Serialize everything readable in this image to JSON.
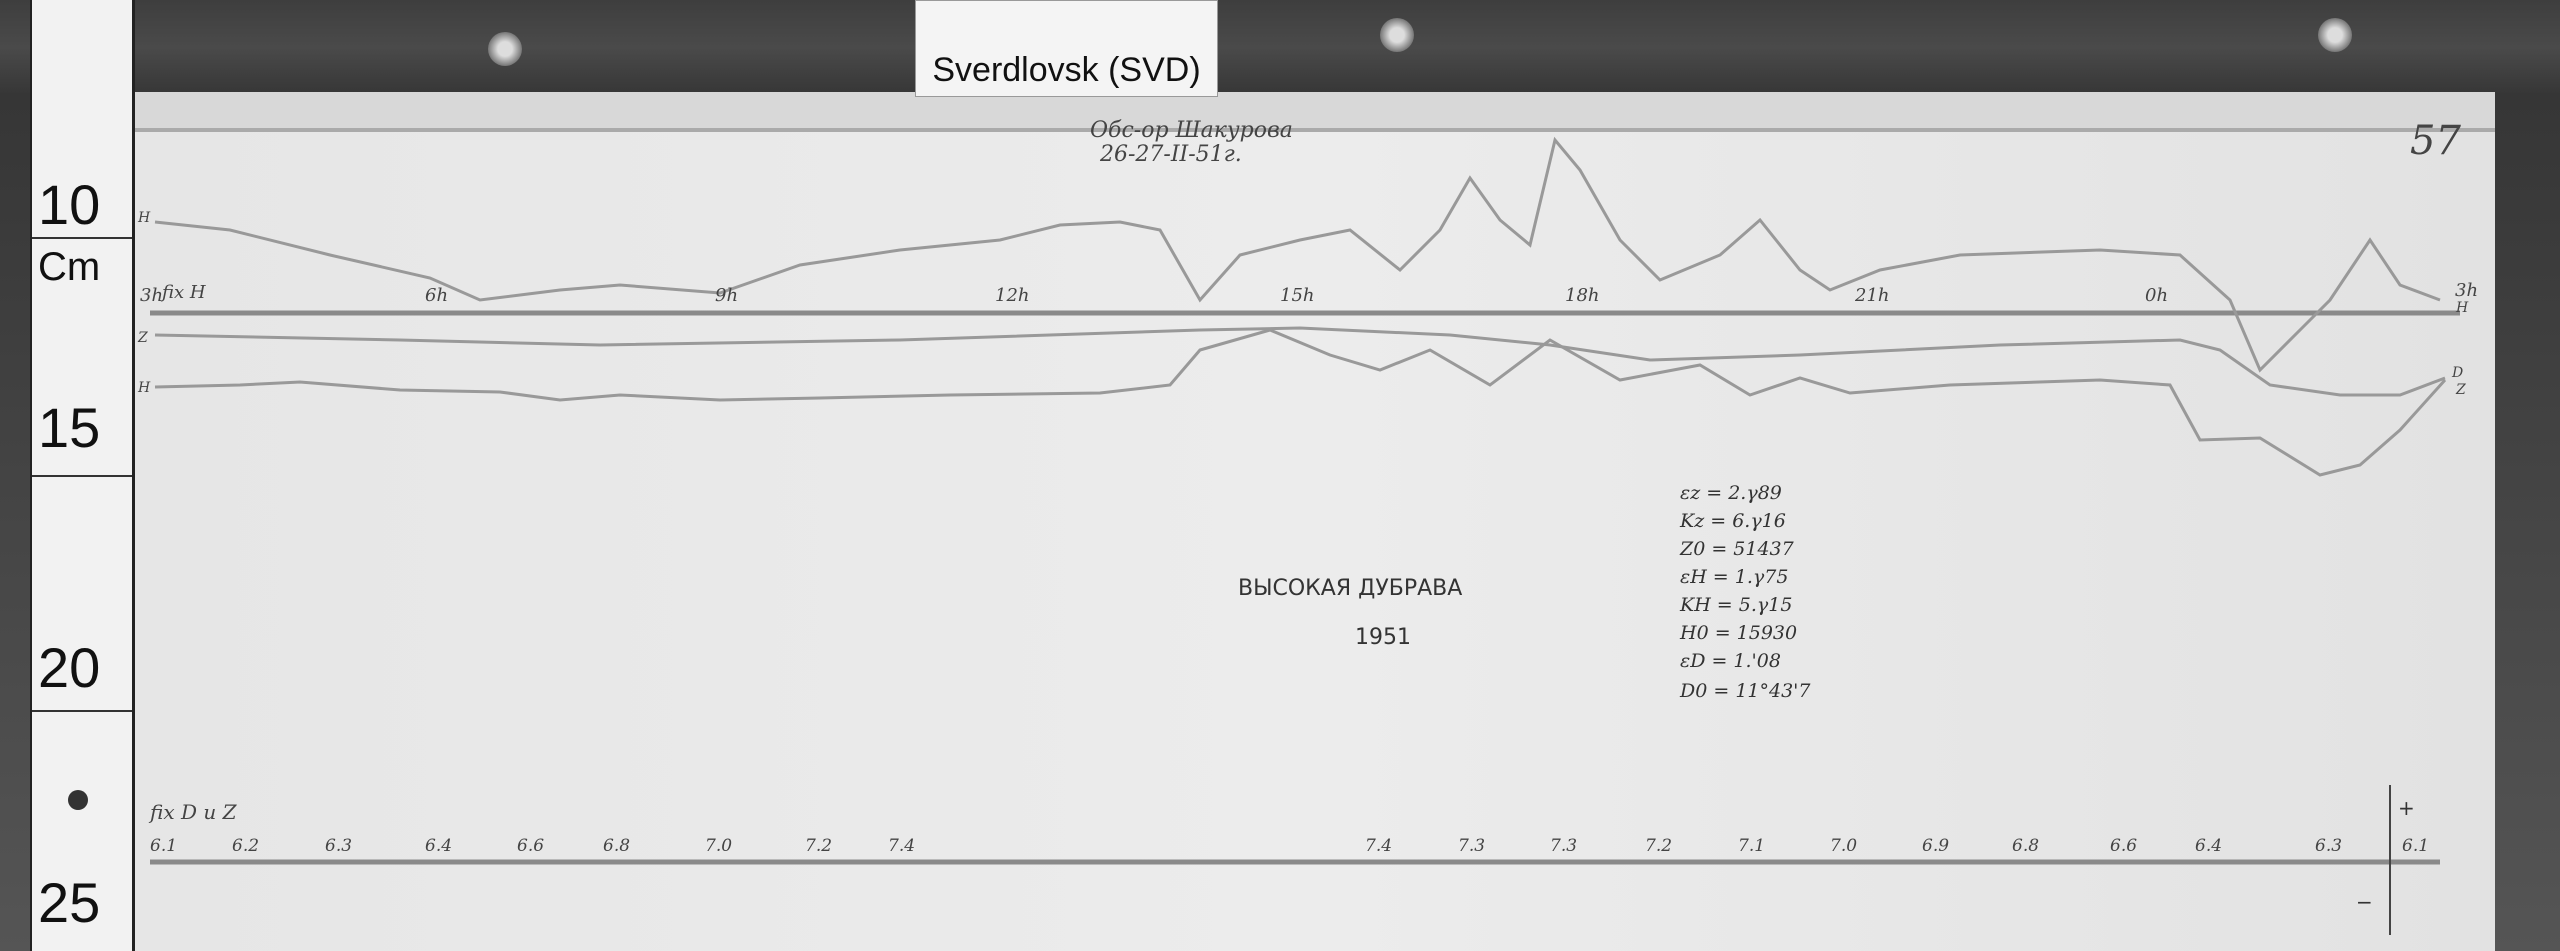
{
  "label": {
    "text": "Sverdlovsk (SVD)"
  },
  "ruler": {
    "unit": "Cm",
    "marks": [
      "10",
      "15",
      "20",
      "25"
    ]
  },
  "header": {
    "observer": "Обс-ор Шакурова",
    "date": "26-27-II-51г.",
    "sheet_number": "57"
  },
  "trace_labels": {
    "fix": "fix H",
    "h_top": "H",
    "z": "Z",
    "h_low": "H",
    "right_h": "H",
    "right_d": "D",
    "right_z": "Z"
  },
  "hours": [
    "3h",
    "6h",
    "9h",
    "12h",
    "15h",
    "18h",
    "21h",
    "0h",
    "3h"
  ],
  "station": {
    "name": "ВЫСОКАЯ ДУБРАВА",
    "year": "1951"
  },
  "parameters": [
    "εz = 2.γ89",
    "Kz = 6.γ16",
    "Z0 = 51437",
    "εH = 1.γ75",
    "KH = 5.γ15",
    "H0 = 15930",
    "εD = 1.'08",
    "D0 = 11°43'7"
  ],
  "temperature": {
    "label": "fix D u Z",
    "left_values": [
      "6.1",
      "6.2",
      "6.3",
      "6.4",
      "6.6",
      "6.8",
      "7.0",
      "7.2",
      "7.4"
    ],
    "right_values": [
      "7.4",
      "7.3",
      "7.3",
      "7.2",
      "7.1",
      "7.0",
      "6.9",
      "6.8",
      "6.6",
      "6.4",
      "6.3",
      "6.1"
    ],
    "plus": "+",
    "minus": "−"
  }
}
